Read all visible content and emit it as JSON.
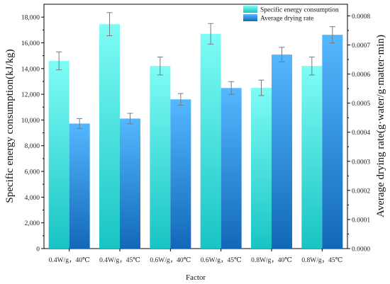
{
  "chart_data": {
    "type": "bar",
    "xlabel": "Factor",
    "categories": [
      "0.4W/g，40℃",
      "0.4W/g，45℃",
      "0.6W/g，40℃",
      "0.6W/g，45℃",
      "0.8W/g，40℃",
      "0.8W/g，45℃"
    ],
    "y_left": {
      "label": "Specific energy consumption(kJ/kg)",
      "range": [
        0,
        19000
      ],
      "ticks": [
        "0",
        "2,000",
        "4,000",
        "6,000",
        "8,000",
        "10,000",
        "12,000",
        "14,000",
        "16,000",
        "18,000"
      ],
      "tick_values": [
        0,
        2000,
        4000,
        6000,
        8000,
        10000,
        12000,
        14000,
        16000,
        18000
      ]
    },
    "y_right": {
      "label": "Average drying rate(g·water/g·matter·min)",
      "range": [
        0,
        0.00084
      ],
      "ticks": [
        "0.0000",
        "0.0001",
        "0.0002",
        "0.0003",
        "0.0004",
        "0.0005",
        "0.0006",
        "0.0007",
        "0.0008"
      ],
      "tick_values": [
        0,
        0.0001,
        0.0002,
        0.0003,
        0.0004,
        0.0005,
        0.0006,
        0.0007,
        0.0008
      ]
    },
    "series": [
      {
        "name": "Specific energy consumption",
        "axis": "left",
        "values": [
          14600,
          17450,
          14200,
          16700,
          12500,
          14200
        ],
        "errors": [
          700,
          900,
          700,
          800,
          600,
          700
        ],
        "color_top": "#7ffcf6",
        "color_bottom": "#18c4c4"
      },
      {
        "name": "Average drying rate",
        "axis": "right",
        "values": [
          0.00043,
          0.000447,
          0.000513,
          0.000552,
          0.000667,
          0.000735
        ],
        "errors": [
          1.7e-05,
          1.8e-05,
          2e-05,
          2.2e-05,
          2.5e-05,
          2.8e-05
        ],
        "color_top": "#55b8ff",
        "color_bottom": "#1268b8"
      }
    ],
    "legend": {
      "position": "top-right"
    },
    "grid": false
  }
}
